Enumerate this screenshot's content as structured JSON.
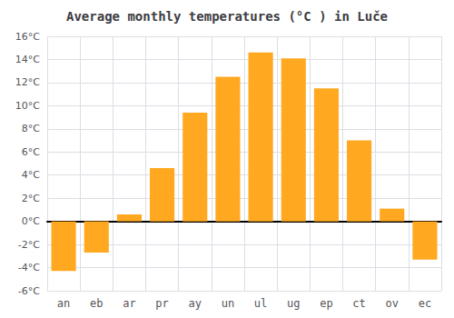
{
  "chart_data": {
    "type": "bar",
    "title": "Average monthly temperatures (°C ) in Luče",
    "categories": [
      "an",
      "eb",
      "ar",
      "pr",
      "ay",
      "un",
      "ul",
      "ug",
      "ep",
      "ct",
      "ov",
      "ec"
    ],
    "values": [
      -4.3,
      -2.7,
      0.6,
      4.6,
      9.4,
      12.5,
      14.6,
      14.1,
      11.5,
      7.0,
      1.1,
      -3.3
    ],
    "color": "#FFA820",
    "ylim": [
      -6,
      16
    ],
    "yticks": [
      {
        "value": -6,
        "label": "-6°C"
      },
      {
        "value": -4,
        "label": "-4°C"
      },
      {
        "value": -2,
        "label": "-2°C"
      },
      {
        "value": 0,
        "label": "0°C"
      },
      {
        "value": 2,
        "label": "2°C"
      },
      {
        "value": 4,
        "label": "4°C"
      },
      {
        "value": 6,
        "label": "6°C"
      },
      {
        "value": 8,
        "label": "8°C"
      },
      {
        "value": 10,
        "label": "10°C"
      },
      {
        "value": 12,
        "label": "12°C"
      },
      {
        "value": 14,
        "label": "14°C"
      },
      {
        "value": 16,
        "label": "16°C"
      }
    ],
    "grid": true
  }
}
